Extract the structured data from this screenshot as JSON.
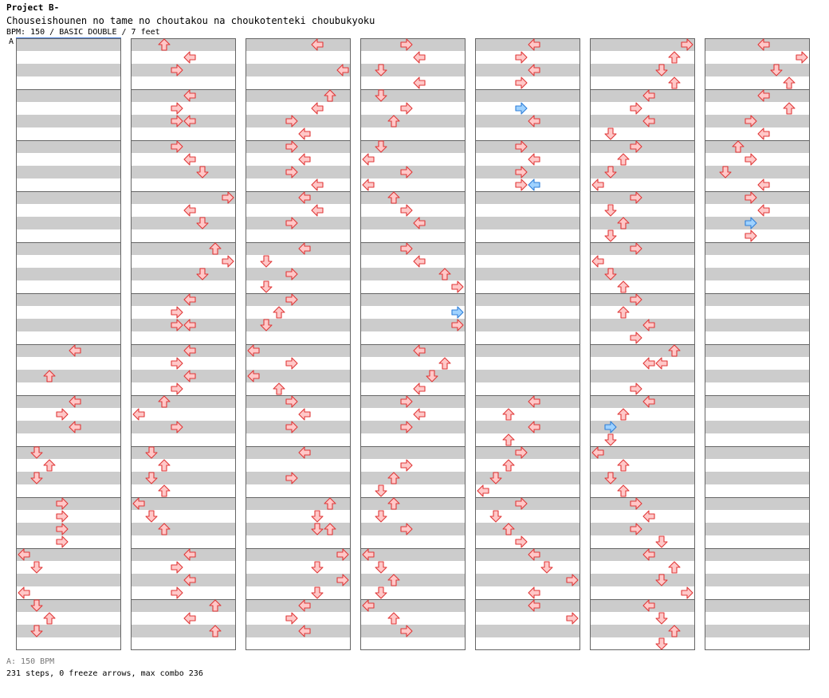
{
  "header": {
    "title": "Project B-",
    "song": "Chouseishounen no tame no choutakou na choukotenteki choubukyoku",
    "meta": "BPM: 150 / BASIC DOUBLE / 7 feet"
  },
  "bpm_marker": "A",
  "footer": {
    "bpm": "A: 150 BPM",
    "steps": "231 steps, 0 freeze arrows, max combo 236"
  },
  "colors": {
    "arrow_fill": "#ffc8c8",
    "arrow_stroke": "#e03838",
    "blue_fill": "#9fd2ff",
    "blue_stroke": "#2f7fd8",
    "stripe": "#cccccc",
    "border": "#666666"
  },
  "chart_data": {
    "type": "step-chart",
    "columns": 7,
    "measures_per_column": 12,
    "rows_per_measure": 4,
    "lanes": [
      "P1-left",
      "P1-down",
      "P1-up",
      "P1-right",
      "P2-left",
      "P2-down",
      "P2-up",
      "P2-right"
    ],
    "notes": [
      [
        0,
        10,
        0,
        0,
        "l"
      ],
      [
        0,
        10,
        1,
        1,
        "d"
      ],
      [
        0,
        10,
        3,
        0,
        "l"
      ],
      [
        0,
        11,
        0,
        1,
        "d"
      ],
      [
        0,
        11,
        1,
        2,
        "u"
      ],
      [
        0,
        11,
        2,
        1,
        "d"
      ],
      [
        0,
        6,
        0,
        4,
        "l"
      ],
      [
        0,
        6,
        2,
        2,
        "u"
      ],
      [
        0,
        7,
        0,
        4,
        "l"
      ],
      [
        0,
        7,
        1,
        3,
        "r"
      ],
      [
        0,
        7,
        2,
        4,
        "l"
      ],
      [
        0,
        8,
        0,
        1,
        "d"
      ],
      [
        0,
        8,
        1,
        2,
        "u"
      ],
      [
        0,
        8,
        2,
        1,
        "d"
      ],
      [
        0,
        9,
        0,
        3,
        "r"
      ],
      [
        0,
        9,
        1,
        3,
        "r"
      ],
      [
        0,
        9,
        2,
        3,
        "r"
      ],
      [
        0,
        9,
        3,
        3,
        "r"
      ],
      [
        1,
        0,
        0,
        2,
        "u"
      ],
      [
        1,
        0,
        1,
        4,
        "l"
      ],
      [
        1,
        0,
        2,
        3,
        "r"
      ],
      [
        1,
        1,
        0,
        4,
        "l"
      ],
      [
        1,
        1,
        1,
        3,
        "r"
      ],
      [
        1,
        1,
        2,
        3,
        "r"
      ],
      [
        1,
        1,
        2,
        4,
        "l"
      ],
      [
        1,
        2,
        0,
        3,
        "r"
      ],
      [
        1,
        2,
        1,
        4,
        "l"
      ],
      [
        1,
        2,
        2,
        5,
        "d"
      ],
      [
        1,
        3,
        0,
        7,
        "r"
      ],
      [
        1,
        3,
        1,
        4,
        "l"
      ],
      [
        1,
        3,
        2,
        5,
        "d"
      ],
      [
        1,
        4,
        0,
        6,
        "u"
      ],
      [
        1,
        4,
        1,
        7,
        "r"
      ],
      [
        1,
        4,
        2,
        5,
        "d"
      ],
      [
        1,
        5,
        0,
        4,
        "l"
      ],
      [
        1,
        5,
        1,
        3,
        "r"
      ],
      [
        1,
        5,
        2,
        3,
        "r"
      ],
      [
        1,
        5,
        2,
        4,
        "l"
      ],
      [
        1,
        6,
        0,
        4,
        "l"
      ],
      [
        1,
        6,
        1,
        3,
        "r"
      ],
      [
        1,
        6,
        2,
        4,
        "l"
      ],
      [
        1,
        6,
        3,
        3,
        "r"
      ],
      [
        1,
        7,
        0,
        2,
        "u"
      ],
      [
        1,
        7,
        1,
        0,
        "l"
      ],
      [
        1,
        7,
        2,
        3,
        "r"
      ],
      [
        1,
        8,
        0,
        1,
        "d"
      ],
      [
        1,
        8,
        1,
        2,
        "u"
      ],
      [
        1,
        8,
        2,
        1,
        "d"
      ],
      [
        1,
        8,
        3,
        2,
        "u"
      ],
      [
        1,
        9,
        0,
        0,
        "l"
      ],
      [
        1,
        9,
        1,
        1,
        "d"
      ],
      [
        1,
        9,
        2,
        2,
        "u"
      ],
      [
        1,
        10,
        0,
        4,
        "l"
      ],
      [
        1,
        10,
        1,
        3,
        "r"
      ],
      [
        1,
        10,
        2,
        4,
        "l"
      ],
      [
        1,
        10,
        3,
        3,
        "r"
      ],
      [
        1,
        11,
        0,
        6,
        "u"
      ],
      [
        1,
        11,
        1,
        4,
        "l"
      ],
      [
        1,
        11,
        2,
        6,
        "u"
      ],
      [
        2,
        0,
        0,
        5,
        "l"
      ],
      [
        2,
        0,
        2,
        7,
        "l"
      ],
      [
        2,
        1,
        0,
        6,
        "u"
      ],
      [
        2,
        1,
        1,
        5,
        "l"
      ],
      [
        2,
        1,
        2,
        3,
        "r"
      ],
      [
        2,
        1,
        3,
        4,
        "l"
      ],
      [
        2,
        2,
        0,
        3,
        "r"
      ],
      [
        2,
        2,
        1,
        4,
        "l"
      ],
      [
        2,
        2,
        2,
        3,
        "r"
      ],
      [
        2,
        2,
        3,
        5,
        "l"
      ],
      [
        2,
        3,
        0,
        4,
        "l"
      ],
      [
        2,
        3,
        1,
        5,
        "l"
      ],
      [
        2,
        3,
        2,
        3,
        "r"
      ],
      [
        2,
        4,
        0,
        4,
        "l"
      ],
      [
        2,
        4,
        1,
        1,
        "d"
      ],
      [
        2,
        4,
        2,
        3,
        "r"
      ],
      [
        2,
        4,
        3,
        1,
        "d"
      ],
      [
        2,
        5,
        0,
        3,
        "r"
      ],
      [
        2,
        5,
        1,
        2,
        "u"
      ],
      [
        2,
        5,
        2,
        1,
        "d"
      ],
      [
        2,
        6,
        0,
        0,
        "l"
      ],
      [
        2,
        6,
        1,
        3,
        "r"
      ],
      [
        2,
        6,
        2,
        0,
        "l"
      ],
      [
        2,
        6,
        3,
        2,
        "u"
      ],
      [
        2,
        7,
        0,
        3,
        "r"
      ],
      [
        2,
        7,
        1,
        4,
        "l"
      ],
      [
        2,
        7,
        2,
        3,
        "r"
      ],
      [
        2,
        8,
        0,
        4,
        "l"
      ],
      [
        2,
        8,
        2,
        3,
        "r"
      ],
      [
        2,
        9,
        0,
        6,
        "u"
      ],
      [
        2,
        9,
        1,
        5,
        "d"
      ],
      [
        2,
        9,
        2,
        5,
        "d"
      ],
      [
        2,
        9,
        2,
        6,
        "u"
      ],
      [
        2,
        10,
        0,
        7,
        "r"
      ],
      [
        2,
        10,
        1,
        5,
        "d"
      ],
      [
        2,
        10,
        2,
        7,
        "r"
      ],
      [
        2,
        10,
        3,
        5,
        "d"
      ],
      [
        2,
        11,
        0,
        4,
        "l"
      ],
      [
        2,
        11,
        1,
        3,
        "r"
      ],
      [
        2,
        11,
        2,
        4,
        "l"
      ],
      [
        3,
        0,
        0,
        3,
        "r"
      ],
      [
        3,
        0,
        1,
        4,
        "l"
      ],
      [
        3,
        0,
        2,
        1,
        "d"
      ],
      [
        3,
        0,
        3,
        4,
        "l"
      ],
      [
        3,
        1,
        0,
        1,
        "d"
      ],
      [
        3,
        1,
        1,
        3,
        "r"
      ],
      [
        3,
        1,
        2,
        2,
        "u"
      ],
      [
        3,
        2,
        0,
        1,
        "d"
      ],
      [
        3,
        2,
        1,
        0,
        "l"
      ],
      [
        3,
        2,
        2,
        3,
        "r"
      ],
      [
        3,
        2,
        3,
        0,
        "l"
      ],
      [
        3,
        3,
        0,
        2,
        "u"
      ],
      [
        3,
        3,
        1,
        3,
        "r"
      ],
      [
        3,
        3,
        2,
        4,
        "l"
      ],
      [
        3,
        4,
        0,
        3,
        "r"
      ],
      [
        3,
        4,
        1,
        4,
        "l"
      ],
      [
        3,
        4,
        2,
        6,
        "u"
      ],
      [
        3,
        4,
        3,
        7,
        "r"
      ],
      [
        3,
        5,
        1,
        7,
        "r"
      ],
      [
        3,
        5,
        2,
        7,
        "r"
      ],
      [
        3,
        6,
        0,
        4,
        "l"
      ],
      [
        3,
        6,
        1,
        6,
        "u"
      ],
      [
        3,
        6,
        2,
        5,
        "d"
      ],
      [
        3,
        6,
        3,
        4,
        "l"
      ],
      [
        3,
        7,
        0,
        3,
        "r"
      ],
      [
        3,
        7,
        1,
        4,
        "l"
      ],
      [
        3,
        7,
        2,
        3,
        "r"
      ],
      [
        3,
        8,
        1,
        3,
        "r"
      ],
      [
        3,
        8,
        2,
        2,
        "u"
      ],
      [
        3,
        8,
        3,
        1,
        "d"
      ],
      [
        3,
        9,
        0,
        2,
        "u"
      ],
      [
        3,
        9,
        1,
        1,
        "d"
      ],
      [
        3,
        9,
        2,
        3,
        "r"
      ],
      [
        3,
        10,
        0,
        0,
        "l"
      ],
      [
        3,
        10,
        1,
        1,
        "d"
      ],
      [
        3,
        10,
        2,
        2,
        "u"
      ],
      [
        3,
        10,
        3,
        1,
        "d"
      ],
      [
        3,
        11,
        0,
        0,
        "l"
      ],
      [
        3,
        11,
        1,
        2,
        "u"
      ],
      [
        3,
        11,
        2,
        3,
        "r"
      ],
      [
        4,
        0,
        0,
        4,
        "l"
      ],
      [
        4,
        0,
        1,
        3,
        "r"
      ],
      [
        4,
        0,
        2,
        4,
        "l"
      ],
      [
        4,
        0,
        3,
        3,
        "r"
      ],
      [
        4,
        1,
        1,
        3,
        "r"
      ],
      [
        4,
        1,
        2,
        4,
        "l"
      ],
      [
        4,
        2,
        0,
        3,
        "r"
      ],
      [
        4,
        2,
        1,
        4,
        "l"
      ],
      [
        4,
        2,
        2,
        3,
        "r"
      ],
      [
        4,
        2,
        3,
        3,
        "r"
      ],
      [
        4,
        2,
        3,
        4,
        "l"
      ],
      [
        4,
        7,
        0,
        4,
        "l"
      ],
      [
        4,
        7,
        1,
        2,
        "u"
      ],
      [
        4,
        7,
        2,
        4,
        "l"
      ],
      [
        4,
        7,
        3,
        2,
        "u"
      ],
      [
        4,
        8,
        0,
        3,
        "r"
      ],
      [
        4,
        8,
        1,
        2,
        "u"
      ],
      [
        4,
        8,
        2,
        1,
        "d"
      ],
      [
        4,
        8,
        3,
        0,
        "l"
      ],
      [
        4,
        9,
        0,
        3,
        "r"
      ],
      [
        4,
        9,
        1,
        1,
        "d"
      ],
      [
        4,
        9,
        2,
        2,
        "u"
      ],
      [
        4,
        9,
        3,
        3,
        "r"
      ],
      [
        4,
        10,
        0,
        4,
        "l"
      ],
      [
        4,
        10,
        1,
        5,
        "d"
      ],
      [
        4,
        10,
        2,
        7,
        "r"
      ],
      [
        4,
        10,
        3,
        4,
        "l"
      ],
      [
        4,
        11,
        0,
        4,
        "l"
      ],
      [
        4,
        11,
        1,
        7,
        "r"
      ],
      [
        5,
        0,
        0,
        7,
        "r"
      ],
      [
        5,
        0,
        1,
        6,
        "u"
      ],
      [
        5,
        0,
        2,
        5,
        "d"
      ],
      [
        5,
        0,
        3,
        6,
        "u"
      ],
      [
        5,
        1,
        0,
        4,
        "l"
      ],
      [
        5,
        1,
        1,
        3,
        "r"
      ],
      [
        5,
        1,
        2,
        4,
        "l"
      ],
      [
        5,
        1,
        3,
        1,
        "d"
      ],
      [
        5,
        2,
        0,
        3,
        "r"
      ],
      [
        5,
        2,
        1,
        2,
        "u"
      ],
      [
        5,
        2,
        2,
        1,
        "d"
      ],
      [
        5,
        2,
        3,
        0,
        "l"
      ],
      [
        5,
        3,
        0,
        3,
        "r"
      ],
      [
        5,
        3,
        1,
        1,
        "d"
      ],
      [
        5,
        3,
        2,
        2,
        "u"
      ],
      [
        5,
        3,
        3,
        1,
        "d"
      ],
      [
        5,
        4,
        0,
        3,
        "r"
      ],
      [
        5,
        4,
        1,
        0,
        "l"
      ],
      [
        5,
        4,
        2,
        1,
        "d"
      ],
      [
        5,
        4,
        3,
        2,
        "u"
      ],
      [
        5,
        5,
        0,
        3,
        "r"
      ],
      [
        5,
        5,
        1,
        2,
        "u"
      ],
      [
        5,
        5,
        2,
        4,
        "l"
      ],
      [
        5,
        5,
        3,
        3,
        "r"
      ],
      [
        5,
        6,
        0,
        6,
        "u"
      ],
      [
        5,
        6,
        1,
        4,
        "l"
      ],
      [
        5,
        6,
        1,
        5,
        "l"
      ],
      [
        5,
        6,
        3,
        3,
        "r"
      ],
      [
        5,
        7,
        0,
        4,
        "l"
      ],
      [
        5,
        7,
        1,
        2,
        "u"
      ],
      [
        5,
        7,
        3,
        1,
        "d"
      ],
      [
        5,
        8,
        0,
        0,
        "l"
      ],
      [
        5,
        8,
        1,
        2,
        "u"
      ],
      [
        5,
        8,
        2,
        1,
        "d"
      ],
      [
        5,
        8,
        3,
        2,
        "u"
      ],
      [
        5,
        9,
        0,
        3,
        "r"
      ],
      [
        5,
        9,
        1,
        4,
        "l"
      ],
      [
        5,
        9,
        2,
        3,
        "r"
      ],
      [
        5,
        9,
        3,
        5,
        "d"
      ],
      [
        5,
        10,
        0,
        4,
        "l"
      ],
      [
        5,
        10,
        1,
        6,
        "u"
      ],
      [
        5,
        10,
        2,
        5,
        "d"
      ],
      [
        5,
        10,
        3,
        7,
        "r"
      ],
      [
        5,
        11,
        0,
        4,
        "l"
      ],
      [
        5,
        11,
        1,
        5,
        "d"
      ],
      [
        5,
        11,
        2,
        6,
        "u"
      ],
      [
        5,
        11,
        3,
        5,
        "d"
      ],
      [
        6,
        0,
        0,
        4,
        "l"
      ],
      [
        6,
        0,
        1,
        7,
        "r"
      ],
      [
        6,
        0,
        2,
        5,
        "d"
      ],
      [
        6,
        0,
        3,
        6,
        "u"
      ],
      [
        6,
        1,
        0,
        4,
        "l"
      ],
      [
        6,
        1,
        1,
        6,
        "u"
      ],
      [
        6,
        1,
        2,
        3,
        "r"
      ],
      [
        6,
        1,
        3,
        4,
        "l"
      ],
      [
        6,
        2,
        0,
        2,
        "u"
      ],
      [
        6,
        2,
        1,
        3,
        "r"
      ],
      [
        6,
        2,
        2,
        1,
        "d"
      ],
      [
        6,
        2,
        3,
        4,
        "l"
      ],
      [
        6,
        3,
        0,
        3,
        "r"
      ],
      [
        6,
        3,
        1,
        4,
        "l"
      ],
      [
        6,
        3,
        2,
        3,
        "r"
      ],
      [
        6,
        3,
        3,
        3,
        "r"
      ]
    ],
    "blue_notes": [
      [
        4,
        1,
        1,
        3,
        "r"
      ],
      [
        4,
        2,
        3,
        4,
        "l"
      ],
      [
        3,
        5,
        1,
        7,
        "r"
      ],
      [
        5,
        7,
        2,
        1,
        "r"
      ],
      [
        6,
        3,
        2,
        3,
        "r"
      ]
    ]
  }
}
